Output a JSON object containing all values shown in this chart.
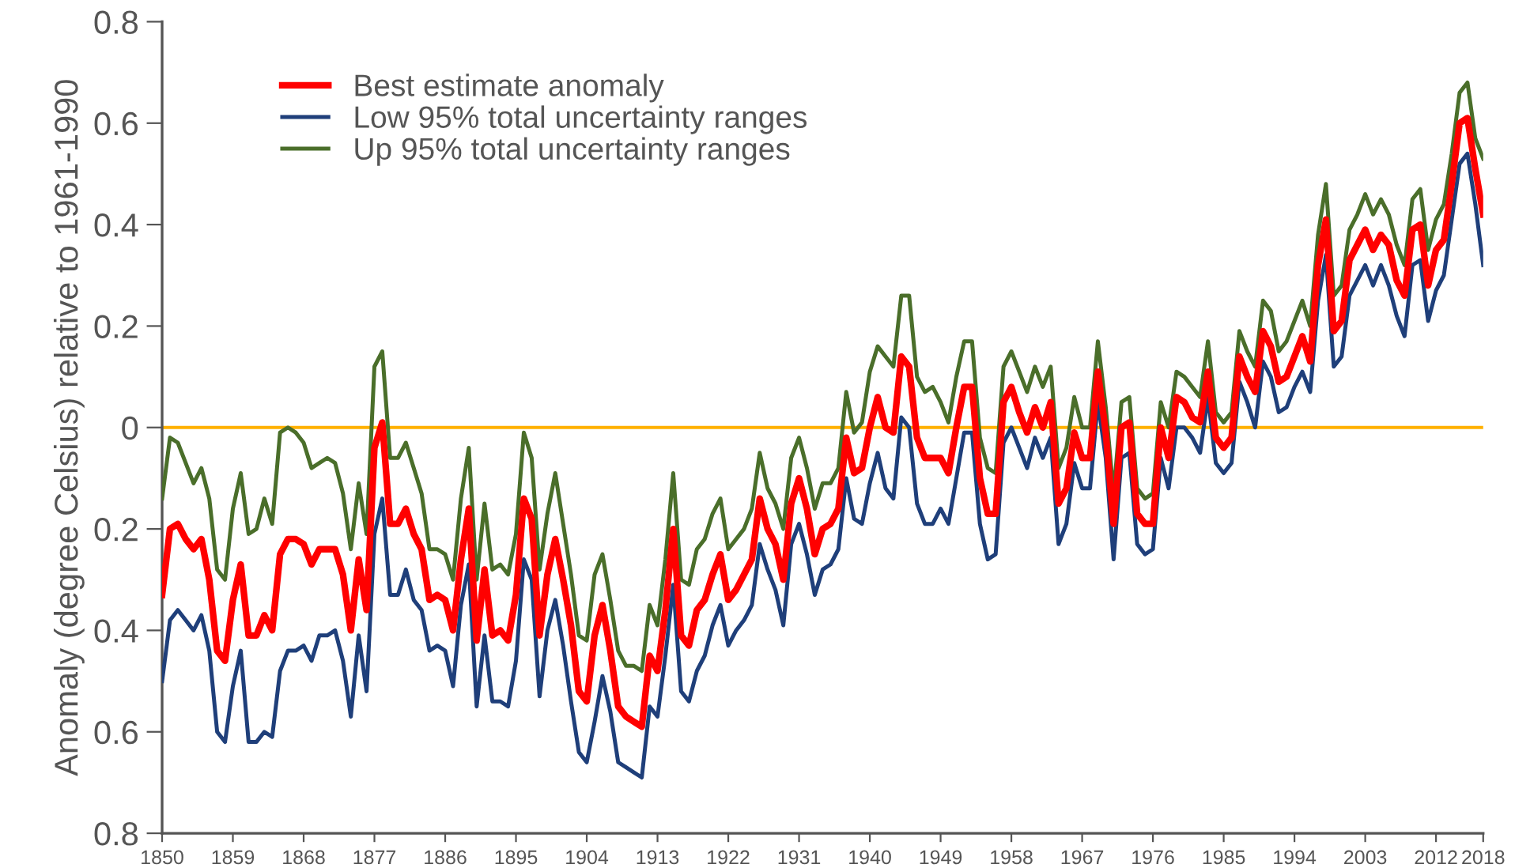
{
  "chart_data": {
    "type": "line",
    "ylabel": "Anomaly (degree Celsius) relative to 1961-1990",
    "x": [
      1850,
      1851,
      1852,
      1853,
      1854,
      1855,
      1856,
      1857,
      1858,
      1859,
      1860,
      1861,
      1862,
      1863,
      1864,
      1865,
      1866,
      1867,
      1868,
      1869,
      1870,
      1871,
      1872,
      1873,
      1874,
      1875,
      1876,
      1877,
      1878,
      1879,
      1880,
      1881,
      1882,
      1883,
      1884,
      1885,
      1886,
      1887,
      1888,
      1889,
      1890,
      1891,
      1892,
      1893,
      1894,
      1895,
      1896,
      1897,
      1898,
      1899,
      1900,
      1901,
      1902,
      1903,
      1904,
      1905,
      1906,
      1907,
      1908,
      1909,
      1910,
      1911,
      1912,
      1913,
      1914,
      1915,
      1916,
      1917,
      1918,
      1919,
      1920,
      1921,
      1922,
      1923,
      1924,
      1925,
      1926,
      1927,
      1928,
      1929,
      1930,
      1931,
      1932,
      1933,
      1934,
      1935,
      1936,
      1937,
      1938,
      1939,
      1940,
      1941,
      1942,
      1943,
      1944,
      1945,
      1946,
      1947,
      1948,
      1949,
      1950,
      1951,
      1952,
      1953,
      1954,
      1955,
      1956,
      1957,
      1958,
      1959,
      1960,
      1961,
      1962,
      1963,
      1964,
      1965,
      1966,
      1967,
      1968,
      1969,
      1970,
      1971,
      1972,
      1973,
      1974,
      1975,
      1976,
      1977,
      1978,
      1979,
      1980,
      1981,
      1982,
      1983,
      1984,
      1985,
      1986,
      1987,
      1988,
      1989,
      1990,
      1991,
      1992,
      1993,
      1994,
      1995,
      1996,
      1997,
      1998,
      1999,
      2000,
      2001,
      2002,
      2003,
      2004,
      2005,
      2006,
      2007,
      2008,
      2009,
      2010,
      2011,
      2012,
      2013,
      2014,
      2015,
      2016,
      2017,
      2018
    ],
    "series": [
      {
        "name": "Best estimate anomaly",
        "color": "#ff0000",
        "values": [
          -0.33,
          -0.2,
          -0.19,
          -0.22,
          -0.24,
          -0.22,
          -0.3,
          -0.44,
          -0.46,
          -0.34,
          -0.27,
          -0.41,
          -0.41,
          -0.37,
          -0.4,
          -0.25,
          -0.22,
          -0.22,
          -0.23,
          -0.27,
          -0.24,
          -0.24,
          -0.24,
          -0.29,
          -0.4,
          -0.26,
          -0.36,
          -0.04,
          0.01,
          -0.19,
          -0.19,
          -0.16,
          -0.21,
          -0.24,
          -0.34,
          -0.33,
          -0.34,
          -0.4,
          -0.26,
          -0.16,
          -0.42,
          -0.28,
          -0.41,
          -0.4,
          -0.42,
          -0.33,
          -0.14,
          -0.18,
          -0.41,
          -0.29,
          -0.22,
          -0.3,
          -0.39,
          -0.52,
          -0.54,
          -0.41,
          -0.35,
          -0.44,
          -0.55,
          -0.57,
          -0.58,
          -0.59,
          -0.45,
          -0.48,
          -0.36,
          -0.2,
          -0.41,
          -0.43,
          -0.36,
          -0.34,
          -0.29,
          -0.25,
          -0.34,
          -0.32,
          -0.29,
          -0.26,
          -0.14,
          -0.2,
          -0.23,
          -0.3,
          -0.15,
          -0.1,
          -0.16,
          -0.25,
          -0.2,
          -0.19,
          -0.16,
          -0.02,
          -0.09,
          -0.08,
          0.0,
          0.06,
          0.0,
          -0.01,
          0.14,
          0.12,
          -0.02,
          -0.06,
          -0.06,
          -0.06,
          -0.09,
          0.0,
          0.08,
          0.08,
          -0.1,
          -0.17,
          -0.17,
          0.05,
          0.08,
          0.03,
          -0.01,
          0.04,
          0.0,
          0.05,
          -0.15,
          -0.12,
          -0.01,
          -0.06,
          -0.06,
          0.11,
          -0.01,
          -0.19,
          0.0,
          0.01,
          -0.17,
          -0.19,
          -0.19,
          0.0,
          -0.06,
          0.06,
          0.05,
          0.02,
          0.01,
          0.11,
          -0.02,
          -0.04,
          -0.02,
          0.14,
          0.1,
          0.07,
          0.19,
          0.16,
          0.09,
          0.1,
          0.14,
          0.18,
          0.13,
          0.32,
          0.41,
          0.19,
          0.21,
          0.33,
          0.36,
          0.39,
          0.35,
          0.38,
          0.36,
          0.29,
          0.26,
          0.39,
          0.4,
          0.28,
          0.35,
          0.37,
          0.48,
          0.6,
          0.61,
          0.51,
          0.42
        ]
      },
      {
        "name": "Low 95% total uncertainty ranges",
        "color": "#1f3f7a",
        "values": [
          -0.5,
          -0.38,
          -0.36,
          -0.38,
          -0.4,
          -0.37,
          -0.44,
          -0.6,
          -0.62,
          -0.51,
          -0.44,
          -0.62,
          -0.62,
          -0.6,
          -0.61,
          -0.48,
          -0.44,
          -0.44,
          -0.43,
          -0.46,
          -0.41,
          -0.41,
          -0.4,
          -0.46,
          -0.57,
          -0.41,
          -0.52,
          -0.21,
          -0.14,
          -0.33,
          -0.33,
          -0.28,
          -0.34,
          -0.36,
          -0.44,
          -0.43,
          -0.44,
          -0.51,
          -0.35,
          -0.27,
          -0.55,
          -0.41,
          -0.54,
          -0.54,
          -0.55,
          -0.46,
          -0.26,
          -0.3,
          -0.53,
          -0.4,
          -0.34,
          -0.43,
          -0.54,
          -0.64,
          -0.66,
          -0.58,
          -0.49,
          -0.56,
          -0.66,
          -0.67,
          -0.68,
          -0.69,
          -0.55,
          -0.57,
          -0.45,
          -0.31,
          -0.52,
          -0.54,
          -0.48,
          -0.45,
          -0.39,
          -0.35,
          -0.43,
          -0.4,
          -0.38,
          -0.35,
          -0.23,
          -0.28,
          -0.32,
          -0.39,
          -0.23,
          -0.19,
          -0.25,
          -0.33,
          -0.28,
          -0.27,
          -0.24,
          -0.1,
          -0.18,
          -0.19,
          -0.11,
          -0.05,
          -0.12,
          -0.14,
          0.02,
          0.0,
          -0.15,
          -0.19,
          -0.19,
          -0.16,
          -0.19,
          -0.1,
          -0.01,
          -0.01,
          -0.19,
          -0.26,
          -0.25,
          -0.03,
          0.0,
          -0.04,
          -0.08,
          -0.02,
          -0.06,
          -0.02,
          -0.23,
          -0.19,
          -0.07,
          -0.12,
          -0.12,
          0.05,
          -0.06,
          -0.26,
          -0.06,
          -0.05,
          -0.23,
          -0.25,
          -0.24,
          -0.06,
          -0.12,
          0.0,
          0.0,
          -0.02,
          -0.05,
          0.06,
          -0.07,
          -0.09,
          -0.07,
          0.09,
          0.05,
          0.0,
          0.13,
          0.1,
          0.03,
          0.04,
          0.08,
          0.11,
          0.07,
          0.25,
          0.34,
          0.12,
          0.14,
          0.26,
          0.29,
          0.32,
          0.28,
          0.32,
          0.28,
          0.22,
          0.18,
          0.32,
          0.33,
          0.21,
          0.27,
          0.3,
          0.41,
          0.52,
          0.54,
          0.44,
          0.32
        ]
      },
      {
        "name": "Up 95% total uncertainty ranges",
        "color": "#4a6e2a",
        "values": [
          -0.14,
          -0.02,
          -0.03,
          -0.07,
          -0.11,
          -0.08,
          -0.14,
          -0.28,
          -0.3,
          -0.16,
          -0.09,
          -0.21,
          -0.2,
          -0.14,
          -0.19,
          -0.01,
          0.0,
          -0.01,
          -0.03,
          -0.08,
          -0.07,
          -0.06,
          -0.07,
          -0.13,
          -0.24,
          -0.11,
          -0.21,
          0.12,
          0.15,
          -0.06,
          -0.06,
          -0.03,
          -0.08,
          -0.13,
          -0.24,
          -0.24,
          -0.25,
          -0.3,
          -0.14,
          -0.04,
          -0.3,
          -0.15,
          -0.28,
          -0.27,
          -0.29,
          -0.21,
          -0.01,
          -0.06,
          -0.28,
          -0.17,
          -0.09,
          -0.19,
          -0.29,
          -0.41,
          -0.42,
          -0.29,
          -0.25,
          -0.34,
          -0.44,
          -0.47,
          -0.47,
          -0.48,
          -0.35,
          -0.39,
          -0.26,
          -0.09,
          -0.3,
          -0.31,
          -0.24,
          -0.22,
          -0.17,
          -0.14,
          -0.24,
          -0.22,
          -0.2,
          -0.16,
          -0.05,
          -0.12,
          -0.15,
          -0.2,
          -0.06,
          -0.02,
          -0.08,
          -0.16,
          -0.11,
          -0.11,
          -0.08,
          0.07,
          -0.01,
          0.01,
          0.11,
          0.16,
          0.14,
          0.12,
          0.26,
          0.26,
          0.1,
          0.07,
          0.08,
          0.05,
          0.01,
          0.1,
          0.17,
          0.17,
          -0.02,
          -0.08,
          -0.09,
          0.12,
          0.15,
          0.11,
          0.07,
          0.12,
          0.08,
          0.12,
          -0.08,
          -0.04,
          0.06,
          0.0,
          0.0,
          0.17,
          0.04,
          -0.13,
          0.05,
          0.06,
          -0.12,
          -0.14,
          -0.13,
          0.05,
          0.0,
          0.11,
          0.1,
          0.08,
          0.06,
          0.17,
          0.03,
          0.01,
          0.03,
          0.19,
          0.15,
          0.12,
          0.25,
          0.23,
          0.15,
          0.17,
          0.21,
          0.25,
          0.2,
          0.38,
          0.48,
          0.26,
          0.28,
          0.39,
          0.42,
          0.46,
          0.42,
          0.45,
          0.42,
          0.36,
          0.32,
          0.45,
          0.47,
          0.35,
          0.41,
          0.44,
          0.54,
          0.66,
          0.68,
          0.57,
          0.53
        ]
      }
    ],
    "xlim": [
      1850,
      2018
    ],
    "xticks": [
      1850,
      1859,
      1868,
      1877,
      1886,
      1895,
      1904,
      1913,
      1922,
      1931,
      1940,
      1949,
      1958,
      1967,
      1976,
      1985,
      1994,
      2003,
      2012,
      2018
    ],
    "ylim": [
      -0.8,
      0.8
    ],
    "yticks": [
      {
        "value": -0.8,
        "label": "0.8"
      },
      {
        "value": -0.6,
        "label": "0.6"
      },
      {
        "value": -0.4,
        "label": "0.4"
      },
      {
        "value": -0.2,
        "label": "0.2"
      },
      0,
      0.2,
      0.4,
      0.6,
      0.8
    ],
    "ref_lines": [
      {
        "axis": "y",
        "value": 0,
        "color": "#ffb000"
      }
    ],
    "grid": false,
    "legend": "top left",
    "marker": "none",
    "line_style": "solid"
  }
}
